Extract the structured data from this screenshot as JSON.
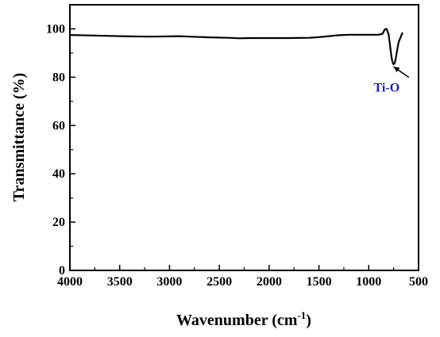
{
  "chart_data": {
    "type": "line",
    "title": "",
    "xlabel": "Wavenumber (cm",
    "xlabel_sup": "-1",
    "xlabel_close": ")",
    "ylabel": "Transmittance (%)",
    "xlim": [
      4000,
      500
    ],
    "ylim": [
      0,
      110
    ],
    "x_reversed": true,
    "x_ticks": [
      4000,
      3500,
      3000,
      2500,
      2000,
      1500,
      1000,
      500
    ],
    "x_tick_labels": [
      "4000",
      "3500",
      "3000",
      "2500",
      "2000",
      "1500",
      "1000",
      "500"
    ],
    "y_ticks": [
      0,
      20,
      40,
      60,
      80,
      100
    ],
    "y_tick_labels": [
      "0",
      "20",
      "40",
      "60",
      "80",
      "100"
    ],
    "grid": false,
    "line_color": "#000000",
    "series": [
      {
        "x": [
          4000,
          3800,
          3600,
          3400,
          3200,
          3000,
          2900,
          2800,
          2600,
          2400,
          2300,
          2200,
          2000,
          1800,
          1600,
          1500,
          1400,
          1300,
          1200,
          1100,
          1000,
          950,
          900,
          860,
          840,
          820,
          800,
          790,
          780,
          770,
          760,
          750,
          740,
          730,
          720,
          700,
          680,
          660
        ],
        "y": [
          97.5,
          97.3,
          97.1,
          96.9,
          96.8,
          96.9,
          97.0,
          96.8,
          96.5,
          96.3,
          96.1,
          96.2,
          96.2,
          96.2,
          96.3,
          96.6,
          97.0,
          97.4,
          97.6,
          97.6,
          97.6,
          97.6,
          97.6,
          98.0,
          99.8,
          100.0,
          97.5,
          94.5,
          91.0,
          88.0,
          86.0,
          85.3,
          85.8,
          87.5,
          90.0,
          94.5,
          96.5,
          98.5
        ]
      }
    ],
    "annotations": [
      {
        "text": "Ti-O",
        "color": "#1a1acc",
        "x": 735,
        "y": 85,
        "text_x": 820,
        "text_y": 74
      }
    ]
  }
}
